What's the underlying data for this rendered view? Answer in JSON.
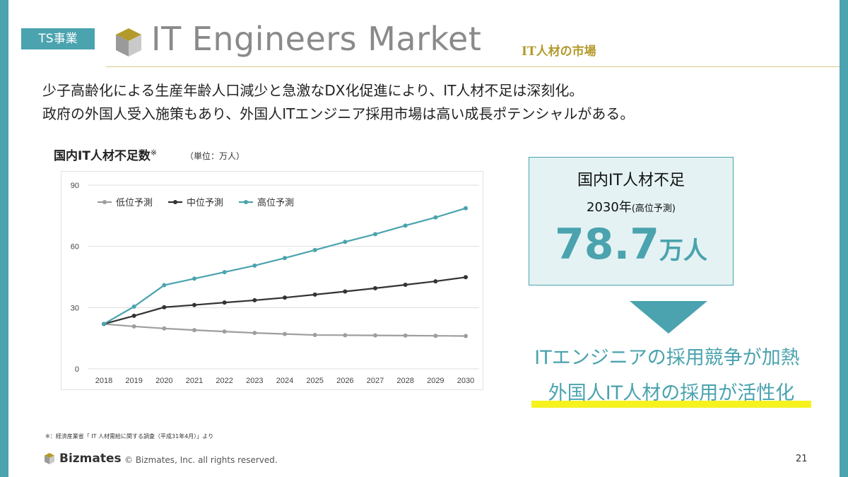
{
  "header": {
    "tag": "TS事業",
    "title": "IT Engineers Market",
    "subtitle": "IT人材の市場"
  },
  "lead": [
    "少子高齢化による生産年齢人口減少と急激なDX化促進により、IT人材不足は深刻化。",
    "政府の外国人受入施策もあり、外国人ITエンジニア採用市場は高い成長ポテンシャルがある。"
  ],
  "chart_title": {
    "main": "国内IT人材不足数",
    "mark": "※",
    "unit": "（単位：万人）"
  },
  "chart_data": {
    "type": "line",
    "title": "国内IT人材不足数※",
    "xlabel": "",
    "ylabel": "（単位：万人）",
    "categories": [
      "2018",
      "2019",
      "2020",
      "2021",
      "2022",
      "2023",
      "2024",
      "2025",
      "2026",
      "2027",
      "2028",
      "2029",
      "2030"
    ],
    "ylim": [
      0,
      90
    ],
    "yticks": [
      0,
      30,
      60,
      90
    ],
    "grid": true,
    "legend_position": "top-left",
    "series": [
      {
        "name": "低位予測",
        "color": "#9e9e9e",
        "values": [
          22,
          20.8,
          19.8,
          19.0,
          18.3,
          17.6,
          17.1,
          16.6,
          16.5,
          16.4,
          16.3,
          16.2,
          16.1
        ]
      },
      {
        "name": "中位予測",
        "color": "#333333",
        "values": [
          22,
          26.0,
          30.2,
          31.3,
          32.5,
          33.6,
          34.9,
          36.4,
          37.9,
          39.5,
          41.2,
          42.9,
          44.9
        ]
      },
      {
        "name": "高位予測",
        "color": "#4aa3ae",
        "values": [
          22,
          30.5,
          41.0,
          44.2,
          47.4,
          50.6,
          54.3,
          58.2,
          62.2,
          66.0,
          70.2,
          74.2,
          78.7
        ]
      }
    ]
  },
  "box": {
    "title": "国内IT人材不足",
    "year": "2030年",
    "year_note": "(高位予測)",
    "value": "78.7",
    "unit": "万人"
  },
  "conclusion": [
    "ITエンジニアの採用競争が加熱",
    "外国人IT人材の採用が活性化"
  ],
  "footnote": "※：経済産業省「 IT 人材需給に関する調査（平成31年4月）」より",
  "footer": {
    "brand": "Bizmates",
    "copyright": "© Bizmates, Inc. all rights reserved.",
    "page": "21"
  },
  "colors": {
    "accent": "#4aa3ae",
    "gold": "#b39a2c",
    "highlight": "#f5f21e"
  }
}
